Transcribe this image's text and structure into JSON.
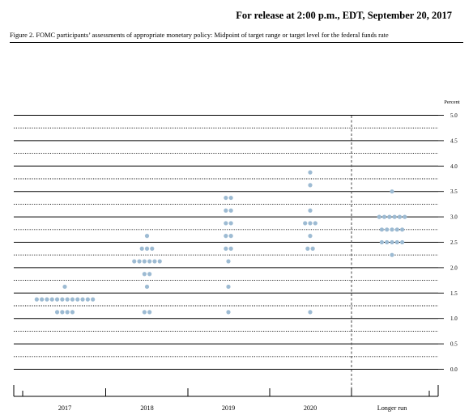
{
  "header": {
    "release": "For release at 2:00 p.m., EDT, September 20, 2017",
    "caption": "Figure 2. FOMC participants’ assessments of appropriate monetary policy: Midpoint of target range or target level for the federal funds rate"
  },
  "chart_data": {
    "type": "scatter",
    "style": "dot plot",
    "categories": [
      "2017",
      "2018",
      "2019",
      "2020",
      "Longer run"
    ],
    "ylabel": "Percent",
    "ylim": [
      0,
      5
    ],
    "ytick_labels": [
      "0.0",
      "0.5",
      "1.0",
      "1.5",
      "2.0",
      "2.5",
      "3.0",
      "3.5",
      "4.0",
      "4.5",
      "5.0"
    ],
    "dot_color": "#9dbbd3",
    "grid": "horizontal rules at each 0.25; solid at whole and half percents, dotted at quarter percents",
    "separator_before": "Longer run",
    "series": [
      {
        "category": "2017",
        "points": [
          {
            "y": 1.125,
            "count": 4
          },
          {
            "y": 1.375,
            "count": 12
          },
          {
            "y": 1.625,
            "count": 1
          }
        ]
      },
      {
        "category": "2018",
        "points": [
          {
            "y": 1.125,
            "count": 2
          },
          {
            "y": 1.625,
            "count": 1
          },
          {
            "y": 1.875,
            "count": 2
          },
          {
            "y": 2.125,
            "count": 6
          },
          {
            "y": 2.375,
            "count": 3
          },
          {
            "y": 2.625,
            "count": 1
          }
        ]
      },
      {
        "category": "2019",
        "points": [
          {
            "y": 1.125,
            "count": 1
          },
          {
            "y": 1.625,
            "count": 1
          },
          {
            "y": 2.125,
            "count": 1
          },
          {
            "y": 2.375,
            "count": 2
          },
          {
            "y": 2.625,
            "count": 2
          },
          {
            "y": 2.875,
            "count": 2
          },
          {
            "y": 3.125,
            "count": 2
          },
          {
            "y": 3.375,
            "count": 2
          }
        ]
      },
      {
        "category": "2020",
        "points": [
          {
            "y": 1.125,
            "count": 1
          },
          {
            "y": 2.375,
            "count": 2
          },
          {
            "y": 2.625,
            "count": 1
          },
          {
            "y": 2.875,
            "count": 3
          },
          {
            "y": 3.125,
            "count": 1
          },
          {
            "y": 3.625,
            "count": 1
          },
          {
            "y": 3.875,
            "count": 1
          }
        ]
      },
      {
        "category": "Longer run",
        "points": [
          {
            "y": 2.25,
            "count": 1
          },
          {
            "y": 2.5,
            "count": 5
          },
          {
            "y": 2.75,
            "count": 5
          },
          {
            "y": 3.0,
            "count": 6
          },
          {
            "y": 3.5,
            "count": 1
          }
        ]
      }
    ]
  }
}
